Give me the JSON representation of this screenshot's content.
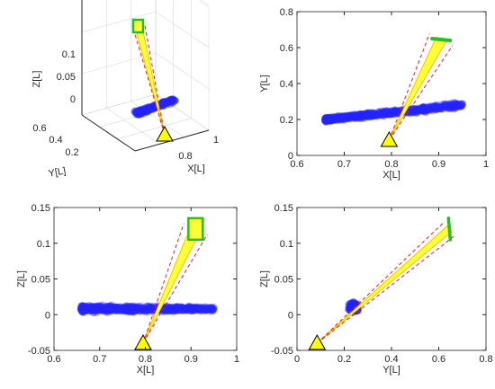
{
  "colors": {
    "points": "#2323ff",
    "beam_fill": "#ffff33",
    "beam_edge": "#f2c200",
    "ray": "#e8201a",
    "detector": "#22c022",
    "source": "#ffff00"
  },
  "chart_data": [
    {
      "type": "scatter",
      "projection": "3d",
      "xlabel": "X[L]",
      "ylabel": "Y[L]",
      "zlabel": "Z[L]",
      "xticks": [
        "0.8",
        "1"
      ],
      "yticks": [
        "0.2",
        "0.4",
        "0.6"
      ],
      "zticks": [
        "0",
        "0.05",
        "0.1"
      ],
      "grid": true
    },
    {
      "type": "scatter",
      "xlabel": "X[L]",
      "ylabel": "Y[L]",
      "xlim": [
        0.6,
        1.0
      ],
      "ylim": [
        0,
        0.8
      ],
      "xticks": [
        "0.6",
        "0.7",
        "0.8",
        "0.9",
        "1"
      ],
      "yticks": [
        "0",
        "0.2",
        "0.4",
        "0.6",
        "0.8"
      ],
      "source": [
        0.795,
        0.085
      ],
      "detector": [
        0.905,
        0.645
      ],
      "cloud": {
        "x_range": [
          0.66,
          0.95
        ],
        "y_center_at_x_min": 0.2,
        "y_center_at_x_max": 0.28
      },
      "grid": false
    },
    {
      "type": "scatter",
      "xlabel": "X[L]",
      "ylabel": "Z[L]",
      "xlim": [
        0.6,
        1.0
      ],
      "ylim": [
        -0.05,
        0.15
      ],
      "xticks": [
        "0.6",
        "0.7",
        "0.8",
        "0.9",
        "1"
      ],
      "yticks": [
        "-0.05",
        "0",
        "0.05",
        "0.1",
        "0.15"
      ],
      "source": [
        0.795,
        -0.04
      ],
      "detector": [
        0.91,
        0.12
      ],
      "cloud": {
        "x_range": [
          0.66,
          0.95
        ],
        "z_center": 0.008
      },
      "grid": false
    },
    {
      "type": "scatter",
      "xlabel": "Y[L]",
      "ylabel": "Z[L]",
      "xlim": [
        0,
        0.8
      ],
      "ylim": [
        -0.05,
        0.15
      ],
      "xticks": [
        "0",
        "0.2",
        "0.4",
        "0.6",
        "0.8"
      ],
      "yticks": [
        "-0.05",
        "0",
        "0.05",
        "0.1",
        "0.15"
      ],
      "source": [
        0.085,
        -0.04
      ],
      "detector": [
        0.645,
        0.12
      ],
      "cloud": {
        "center": [
          0.24,
          0.01
        ],
        "y_spread": 0.04,
        "z_spread": 0.012
      },
      "grid": false
    }
  ]
}
